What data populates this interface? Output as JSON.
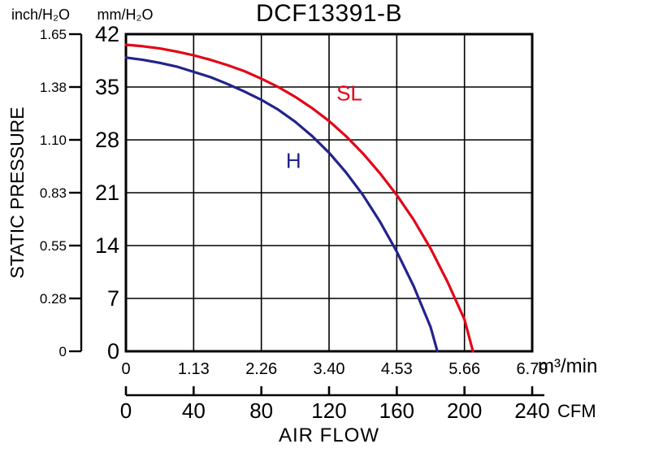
{
  "chart_data": {
    "type": "line",
    "title": "DCF13391-B",
    "xlabel": "AIR FLOW",
    "ylabel": "STATIC PRESSURE",
    "grid": {
      "cols": 6,
      "rows": 6,
      "color": "#000000",
      "legend": "none"
    },
    "x_primary": {
      "unit": "m³/min",
      "ticks": [
        "0",
        "1.13",
        "2.26",
        "3.40",
        "4.53",
        "5.66",
        "6.79"
      ],
      "min": 0,
      "max": 6.79
    },
    "x_secondary": {
      "unit": "CFM",
      "ticks": [
        "0",
        "40",
        "80",
        "120",
        "160",
        "200",
        "240"
      ],
      "min": 0,
      "max": 240
    },
    "y_primary": {
      "unit": "mm/H₂O",
      "ticks": [
        "0",
        "7",
        "14",
        "21",
        "28",
        "35",
        "42"
      ],
      "min": 0,
      "max": 42
    },
    "y_secondary": {
      "unit": "inch/H₂O",
      "ticks": [
        "0",
        "0.28",
        "0.55",
        "0.83",
        "1.10",
        "1.38",
        "1.65"
      ],
      "min": 0,
      "max": 1.65
    },
    "series": [
      {
        "name": "SL",
        "color": "#e30617",
        "label_at_cfm_mm": [
          132,
          33.2
        ],
        "points_cfm_mm": [
          [
            0,
            40.6
          ],
          [
            10,
            40.4
          ],
          [
            20,
            40.1
          ],
          [
            30,
            39.7
          ],
          [
            40,
            39.2
          ],
          [
            50,
            38.6
          ],
          [
            60,
            37.9
          ],
          [
            70,
            37.1
          ],
          [
            80,
            36.1
          ],
          [
            90,
            35.0
          ],
          [
            100,
            33.7
          ],
          [
            110,
            32.2
          ],
          [
            120,
            30.5
          ],
          [
            130,
            28.5
          ],
          [
            140,
            26.2
          ],
          [
            150,
            23.6
          ],
          [
            160,
            20.7
          ],
          [
            170,
            17.4
          ],
          [
            180,
            13.6
          ],
          [
            190,
            9.2
          ],
          [
            200,
            4.2
          ],
          [
            205,
            0
          ]
        ]
      },
      {
        "name": "H",
        "color": "#23238c",
        "label_at_cfm_mm": [
          99,
          24.3
        ],
        "points_cfm_mm": [
          [
            0,
            38.9
          ],
          [
            10,
            38.6
          ],
          [
            20,
            38.2
          ],
          [
            30,
            37.7
          ],
          [
            40,
            37.0
          ],
          [
            50,
            36.3
          ],
          [
            60,
            35.4
          ],
          [
            70,
            34.4
          ],
          [
            80,
            33.3
          ],
          [
            90,
            32.0
          ],
          [
            100,
            30.4
          ],
          [
            110,
            28.5
          ],
          [
            120,
            26.3
          ],
          [
            130,
            23.7
          ],
          [
            140,
            20.7
          ],
          [
            150,
            17.2
          ],
          [
            160,
            13.2
          ],
          [
            170,
            8.6
          ],
          [
            180,
            3.2
          ],
          [
            184,
            0
          ]
        ]
      }
    ]
  }
}
